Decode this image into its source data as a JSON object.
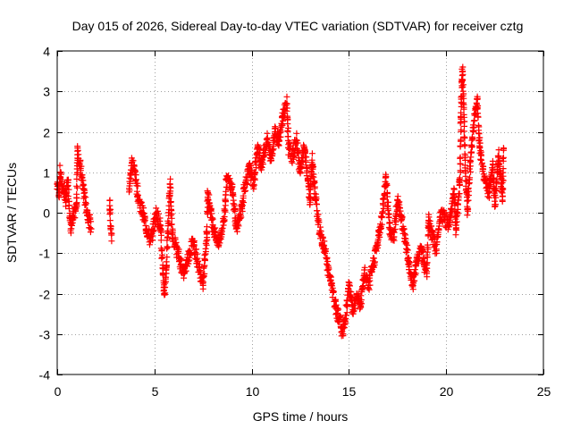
{
  "chart_data": {
    "type": "scatter",
    "title": "Day 015 of 2026, Sidereal Day-to-day VTEC variation (SDTVAR) for receiver cztg",
    "xlabel": "GPS time / hours",
    "ylabel": "SDTVAR / TECUs",
    "xlim": [
      0,
      25
    ],
    "ylim": [
      -4,
      4
    ],
    "xticks": [
      0,
      5,
      10,
      15,
      20,
      25
    ],
    "yticks": [
      -4,
      -3,
      -2,
      -1,
      0,
      1,
      2,
      3,
      4
    ],
    "grid": true,
    "marker": "+",
    "series": [
      {
        "name": "SDTVAR",
        "color": "#ff0000",
        "anchors": [
          [
            0.0,
            0.7
          ],
          [
            0.1,
            0.5
          ],
          [
            0.15,
            1.0
          ],
          [
            0.3,
            0.6
          ],
          [
            0.45,
            0.3
          ],
          [
            0.55,
            0.8
          ],
          [
            0.7,
            -0.4
          ],
          [
            1.0,
            0.2
          ],
          [
            1.05,
            1.6
          ],
          [
            1.15,
            1.2
          ],
          [
            1.3,
            0.8
          ],
          [
            1.4,
            0.4
          ],
          [
            1.55,
            0.0
          ],
          [
            1.75,
            -0.4
          ],
          [
            2.7,
            0.3
          ],
          [
            2.8,
            -0.7
          ],
          [
            3.7,
            0.6
          ],
          [
            3.85,
            1.25
          ],
          [
            4.0,
            1.0
          ],
          [
            4.2,
            0.3
          ],
          [
            4.4,
            0.0
          ],
          [
            4.6,
            -0.4
          ],
          [
            4.8,
            -0.7
          ],
          [
            5.1,
            0.0
          ],
          [
            5.3,
            -0.3
          ],
          [
            5.5,
            -2.0
          ],
          [
            5.6,
            -1.5
          ],
          [
            5.8,
            0.7
          ],
          [
            5.9,
            -0.5
          ],
          [
            6.2,
            -1.0
          ],
          [
            6.5,
            -1.5
          ],
          [
            6.8,
            -1.0
          ],
          [
            7.0,
            -0.7
          ],
          [
            7.2,
            -1.2
          ],
          [
            7.5,
            -1.8
          ],
          [
            7.7,
            -0.5
          ],
          [
            7.75,
            0.5
          ],
          [
            8.0,
            -0.3
          ],
          [
            8.3,
            -0.8
          ],
          [
            8.6,
            -0.1
          ],
          [
            8.7,
            0.8
          ],
          [
            9.0,
            0.7
          ],
          [
            9.2,
            -0.4
          ],
          [
            9.5,
            0.1
          ],
          [
            9.6,
            0.6
          ],
          [
            9.9,
            1.1
          ],
          [
            10.1,
            0.7
          ],
          [
            10.3,
            1.6
          ],
          [
            10.5,
            1.2
          ],
          [
            10.8,
            1.8
          ],
          [
            11.0,
            1.3
          ],
          [
            11.2,
            2.0
          ],
          [
            11.4,
            1.8
          ],
          [
            11.6,
            2.4
          ],
          [
            11.8,
            2.7
          ],
          [
            11.9,
            1.6
          ],
          [
            12.1,
            1.4
          ],
          [
            12.3,
            1.8
          ],
          [
            12.5,
            1.0
          ],
          [
            12.7,
            1.6
          ],
          [
            12.9,
            0.8
          ],
          [
            13.0,
            0.2
          ],
          [
            13.1,
            1.3
          ],
          [
            13.3,
            0.3
          ],
          [
            13.5,
            -0.5
          ],
          [
            13.7,
            -0.8
          ],
          [
            13.9,
            -1.3
          ],
          [
            14.1,
            -1.8
          ],
          [
            14.3,
            -2.3
          ],
          [
            14.5,
            -2.6
          ],
          [
            14.7,
            -3.0
          ],
          [
            14.9,
            -2.3
          ],
          [
            15.0,
            -1.8
          ],
          [
            15.2,
            -2.4
          ],
          [
            15.4,
            -2.0
          ],
          [
            15.6,
            -2.3
          ],
          [
            15.8,
            -1.5
          ],
          [
            16.0,
            -1.8
          ],
          [
            16.2,
            -1.4
          ],
          [
            16.4,
            -0.9
          ],
          [
            16.5,
            -0.7
          ],
          [
            16.7,
            -0.1
          ],
          [
            16.9,
            0.9
          ],
          [
            17.1,
            -0.4
          ],
          [
            17.3,
            -0.6
          ],
          [
            17.5,
            0.3
          ],
          [
            17.7,
            -0.1
          ],
          [
            17.9,
            -0.7
          ],
          [
            18.1,
            -1.3
          ],
          [
            18.3,
            -1.8
          ],
          [
            18.5,
            -1.2
          ],
          [
            18.7,
            -0.9
          ],
          [
            19.0,
            -1.5
          ],
          [
            19.1,
            -0.2
          ],
          [
            19.3,
            -0.6
          ],
          [
            19.5,
            -0.9
          ],
          [
            19.7,
            0.0
          ],
          [
            19.9,
            -0.1
          ],
          [
            20.1,
            -0.3
          ],
          [
            20.3,
            0.1
          ],
          [
            20.4,
            0.6
          ],
          [
            20.5,
            -0.4
          ],
          [
            20.6,
            0.2
          ],
          [
            20.7,
            0.7
          ],
          [
            20.8,
            3.3
          ],
          [
            20.85,
            3.5
          ],
          [
            21.0,
            0.9
          ],
          [
            21.1,
            0.1
          ],
          [
            21.3,
            1.5
          ],
          [
            21.4,
            2.1
          ],
          [
            21.6,
            2.8
          ],
          [
            21.7,
            1.8
          ],
          [
            21.8,
            1.3
          ],
          [
            22.0,
            0.8
          ],
          [
            22.2,
            0.5
          ],
          [
            22.4,
            1.2
          ],
          [
            22.5,
            0.2
          ],
          [
            22.7,
            1.4
          ],
          [
            22.9,
            0.4
          ],
          [
            22.95,
            1.6
          ]
        ]
      }
    ]
  }
}
